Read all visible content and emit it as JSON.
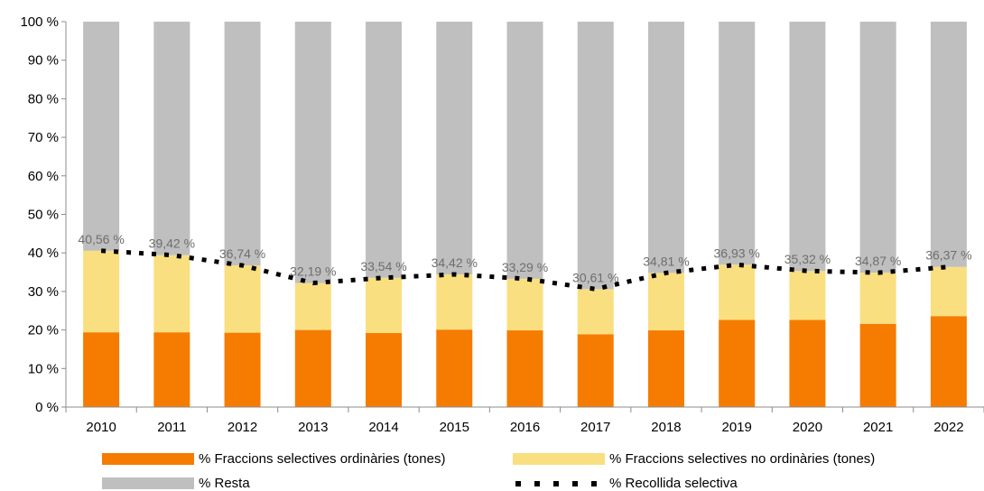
{
  "chart_data": {
    "type": "bar",
    "stacked": true,
    "categories": [
      "2010",
      "2011",
      "2012",
      "2013",
      "2014",
      "2015",
      "2016",
      "2017",
      "2018",
      "2019",
      "2020",
      "2021",
      "2022"
    ],
    "series": [
      {
        "name": "% Fraccions selectives ordinàries (tones)",
        "color": "#f57c00",
        "values": [
          19.4,
          19.4,
          19.3,
          20.0,
          19.2,
          20.1,
          19.9,
          18.9,
          19.9,
          22.6,
          22.6,
          21.6,
          23.6
        ]
      },
      {
        "name": "% Fraccions selectives no ordinàries (tones)",
        "color": "#fadf80",
        "values": [
          21.16,
          20.02,
          17.44,
          12.19,
          14.34,
          14.32,
          13.39,
          11.71,
          14.91,
          14.33,
          12.72,
          13.27,
          12.77
        ]
      },
      {
        "name": "% Resta",
        "color": "#bfbfbf",
        "values": [
          59.44,
          60.58,
          63.26,
          67.81,
          66.46,
          65.58,
          66.71,
          69.39,
          65.19,
          63.07,
          64.68,
          65.13,
          63.63
        ]
      }
    ],
    "line": {
      "name": "% Recollida selectiva",
      "style": "dotted",
      "color": "#000000",
      "values": [
        40.56,
        39.42,
        36.74,
        32.19,
        33.54,
        34.42,
        33.29,
        30.61,
        34.81,
        36.93,
        35.32,
        34.87,
        36.37
      ]
    },
    "data_labels": [
      "40,56 %",
      "39,42 %",
      "36,74 %",
      "32,19 %",
      "33,54 %",
      "34,42 %",
      "33,29 %",
      "30,61 %",
      "34,81 %",
      "36,93 %",
      "35,32 %",
      "34,87 %",
      "36,37 %"
    ],
    "yticks": [
      "0 %",
      "10 %",
      "20 %",
      "30 %",
      "40 %",
      "50 %",
      "60 %",
      "70 %",
      "80 %",
      "90 %",
      "100 %"
    ],
    "ylim": [
      0,
      100
    ],
    "grid": false,
    "legend_position": "bottom"
  },
  "legend": {
    "ordinaries": "% Fraccions selectives ordinàries (tones)",
    "no_ordinaries": "% Fraccions selectives no ordinàries (tones)",
    "resta": "% Resta",
    "recollida": "% Recollida selectiva"
  }
}
